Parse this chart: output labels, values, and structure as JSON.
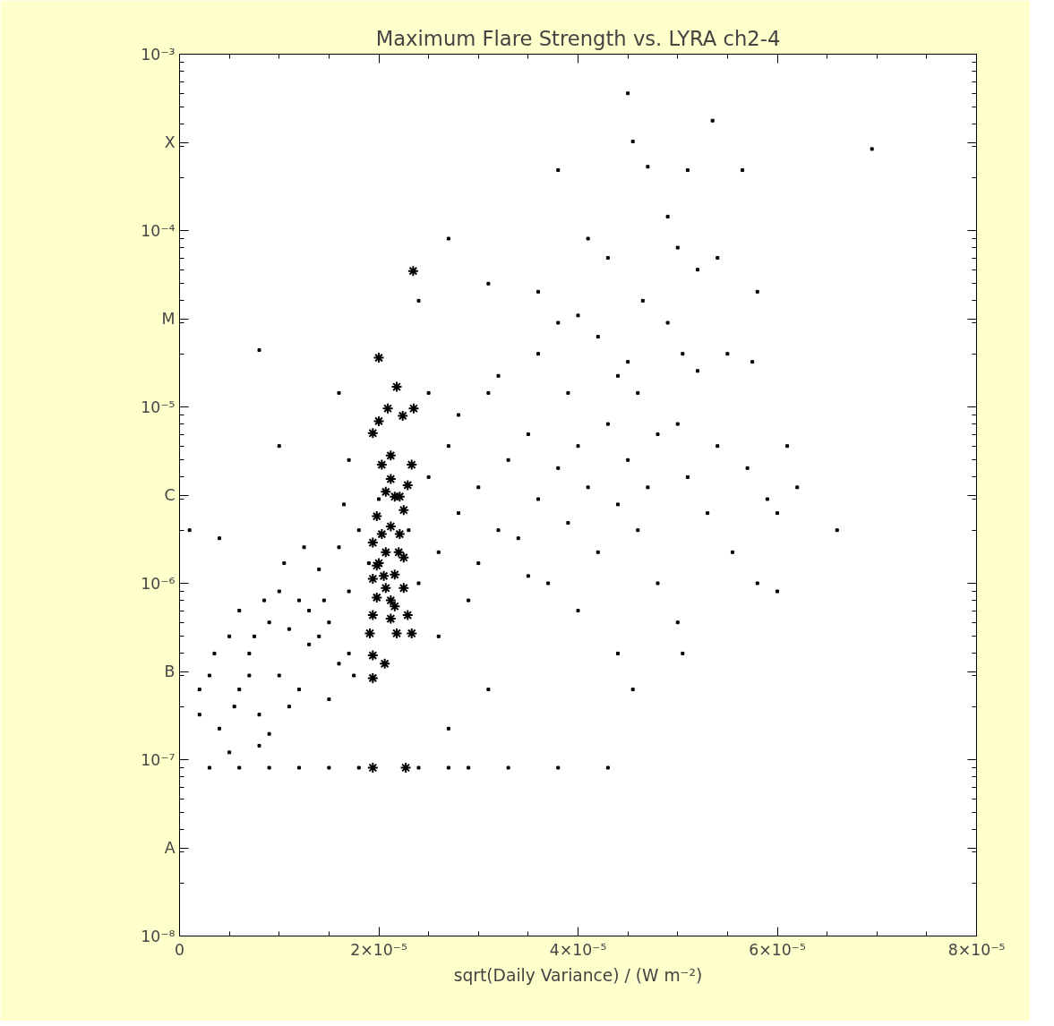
{
  "chart_data": {
    "type": "scatter",
    "title": "Maximum Flare Strength vs. LYRA ch2-4",
    "xlabel": "sqrt(Daily Variance) / (W m⁻²)",
    "log": "y",
    "grid": false,
    "xlim": [
      0,
      8e-05
    ],
    "ylim": [
      1e-08,
      0.001
    ],
    "xticks": [
      0,
      {
        "value": 2e-05,
        "label": "2×10⁻⁵"
      },
      {
        "value": 4e-05,
        "label": "4×10⁻⁵"
      },
      {
        "value": 6e-05,
        "label": "6×10⁻⁵"
      },
      {
        "value": 8e-05,
        "label": "8×10⁻⁵"
      }
    ],
    "yticks": [
      {
        "value": 1e-08,
        "label": "10⁻⁸"
      },
      {
        "value": 3.16e-08,
        "label": "A"
      },
      {
        "value": 1e-07,
        "label": "10⁻⁷"
      },
      {
        "value": 3.16e-07,
        "label": "B"
      },
      {
        "value": 1e-06,
        "label": "10⁻⁶"
      },
      {
        "value": 3.16e-06,
        "label": "C"
      },
      {
        "value": 1e-05,
        "label": "10⁻⁵"
      },
      {
        "value": 3.16e-05,
        "label": "M"
      },
      {
        "value": 0.0001,
        "label": "10⁻⁴"
      },
      {
        "value": 0.000316,
        "label": "X"
      },
      {
        "value": 0.001,
        "label": "10⁻³"
      }
    ],
    "series": [
      {
        "color": "#000000",
        "marker": "square",
        "x": [
          3e-06,
          4e-06,
          5e-06,
          6e-06,
          7e-06,
          8e-06,
          9e-06,
          1e-05,
          1.1e-05,
          1.2e-05,
          1.3e-05,
          1.4e-05,
          1.5e-05,
          1.6e-05,
          1.7e-05,
          1.8e-05,
          6e-06,
          8e-06,
          1e-05,
          1.2e-05,
          1.4e-05,
          1.6e-05,
          5e-06,
          7e-06,
          9e-06,
          1.1e-05,
          1.3e-05,
          1.5e-05,
          1.7e-05,
          1.9e-05,
          2e-06,
          3.5e-06,
          1.25e-05,
          1.45e-05,
          1.65e-05,
          1.05e-05,
          8.5e-06,
          5.5e-06,
          7.5e-06,
          1.75e-05,
          3e-06,
          6e-06,
          9e-06,
          1.2e-05,
          1.5e-05,
          1.8e-05,
          2.4e-05,
          2.7e-05,
          3.3e-05,
          3.8e-05,
          4.3e-05,
          2.9e-05,
          2.3e-05,
          2.4e-05,
          2.5e-05,
          2.6e-05,
          2.7e-05,
          2.8e-05,
          2.9e-05,
          3e-05,
          3.1e-05,
          3.2e-05,
          3.3e-05,
          3.4e-05,
          3.5e-05,
          3.6e-05,
          3.7e-05,
          3.8e-05,
          3.9e-05,
          4e-05,
          4.1e-05,
          4.2e-05,
          4.3e-05,
          4.4e-05,
          4.5e-05,
          4.6e-05,
          4.7e-05,
          4.8e-05,
          2.5e-05,
          2.8e-05,
          3.2e-05,
          3.6e-05,
          3.9e-05,
          4.2e-05,
          4.5e-05,
          2.6e-05,
          3e-05,
          3.5e-05,
          4e-05,
          4.4e-05,
          4.55e-05,
          3.1e-05,
          2.7e-05,
          2.7e-05,
          3.1e-05,
          3.6e-05,
          3.8e-05,
          4.1e-05,
          4.3e-05,
          4.5e-05,
          4.55e-05,
          4.7e-05,
          4.9e-05,
          5e-05,
          5.1e-05,
          5.2e-05,
          5.35e-05,
          5.4e-05,
          5.65e-05,
          5.8e-05,
          3.8e-05,
          2.4e-05,
          4e-05,
          4.4e-05,
          4.65e-05,
          4.9e-05,
          5.05e-05,
          5.2e-05,
          5.5e-05,
          5.75e-05,
          5e-05,
          5.1e-05,
          5.3e-05,
          5.4e-05,
          5.55e-05,
          5.7e-05,
          5.8e-05,
          5.9e-05,
          6e-05,
          6.1e-05,
          6.2e-05,
          6.6e-05,
          6.95e-05,
          5e-05,
          5.05e-05,
          4.8e-05,
          4.6e-05,
          6e-05,
          1e-06,
          2e-06,
          4e-06,
          8e-06,
          1e-05,
          1.6e-05,
          1.7e-05,
          2e-05
        ],
        "values": [
          3e-07,
          1.5e-07,
          5e-07,
          2.5e-07,
          4e-07,
          1.8e-07,
          6e-07,
          3e-07,
          2e-07,
          8e-07,
          4.5e-07,
          1.2e-06,
          6e-07,
          3.5e-07,
          9e-07,
          2e-06,
          7e-07,
          1.2e-07,
          9e-07,
          2.5e-07,
          5e-07,
          1.6e-06,
          1.1e-07,
          3e-07,
          1.4e-07,
          5.5e-07,
          7e-07,
          2.2e-07,
          4e-07,
          1.3e-06,
          1.8e-07,
          4e-07,
          1.6e-06,
          8e-07,
          2.8e-06,
          1.3e-06,
          8e-07,
          2e-07,
          5e-07,
          3e-07,
          9e-08,
          9e-08,
          9e-08,
          9e-08,
          9e-08,
          9e-08,
          9e-08,
          9e-08,
          9e-08,
          9e-08,
          9e-08,
          9e-08,
          2e-06,
          1e-06,
          4e-06,
          1.5e-06,
          6e-06,
          2.5e-06,
          8e-07,
          3.5e-06,
          1.2e-05,
          2e-06,
          5e-06,
          1.8e-06,
          7e-06,
          3e-06,
          1e-06,
          4.5e-06,
          2.2e-06,
          6e-06,
          3.5e-06,
          1.5e-06,
          8e-06,
          2.8e-06,
          5e-06,
          1.2e-05,
          3.5e-06,
          7e-06,
          1.2e-05,
          9e-06,
          1.5e-05,
          2e-05,
          1.2e-05,
          2.5e-05,
          1.8e-05,
          5e-07,
          1.3e-06,
          1.1e-06,
          7e-07,
          4e-07,
          2.5e-07,
          2.5e-07,
          1.5e-07,
          9e-05,
          5e-05,
          4.5e-05,
          3e-05,
          9e-05,
          7e-05,
          0.0006,
          0.00032,
          0.00023,
          0.00012,
          8e-05,
          0.00022,
          6e-05,
          0.00042,
          7e-05,
          0.00022,
          4.5e-05,
          0.00022,
          4e-05,
          3.3e-05,
          1.5e-05,
          4e-05,
          3e-05,
          2e-05,
          1.6e-05,
          2e-05,
          1.8e-05,
          8e-06,
          4e-06,
          2.5e-06,
          6e-06,
          1.5e-06,
          4.5e-06,
          1e-06,
          3e-06,
          2.5e-06,
          6e-06,
          3.5e-06,
          2e-06,
          0.00029,
          6e-07,
          4e-07,
          1e-06,
          2e-06,
          9e-07,
          2e-06,
          2.5e-07,
          1.8e-06,
          2.1e-05,
          6e-06,
          1.2e-05,
          5e-06,
          3e-06
        ]
      },
      {
        "color": "#000000",
        "marker": "cross",
        "x": [
          2.345e-05,
          2e-05,
          2.18e-05,
          2.35e-05,
          2.24e-05,
          2.09e-05,
          2e-05,
          1.94e-05,
          2.12e-05,
          2.33e-05,
          2.12e-05,
          2.07e-05,
          2.21e-05,
          2.25e-05,
          1.98e-05,
          2.12e-05,
          2.21e-05,
          1.94e-05,
          2.07e-05,
          2.25e-05,
          1.98e-05,
          2.16e-05,
          1.94e-05,
          2.07e-05,
          2.25e-05,
          1.98e-05,
          2.16e-05,
          1.94e-05,
          2.12e-05,
          2.29e-05,
          1.91e-05,
          2.18e-05,
          2.33e-05,
          1.94e-05,
          2.06e-05,
          1.94e-05,
          1.94e-05,
          2.27e-05,
          2.03e-05,
          2.16e-05,
          2.03e-05,
          2.2e-05,
          2.05e-05,
          2.12e-05,
          2.29e-05,
          2e-05
        ],
        "values": [
          5.9e-05,
          1.9e-05,
          1.3e-05,
          9.8e-06,
          8.9e-06,
          9.8e-06,
          8.3e-06,
          7.1e-06,
          5.3e-06,
          4.7e-06,
          3.9e-06,
          3.3e-06,
          3.1e-06,
          2.6e-06,
          2.4e-06,
          2.1e-06,
          1.9e-06,
          1.7e-06,
          1.5e-06,
          1.4e-06,
          1.26e-06,
          1.12e-06,
          1.06e-06,
          9.4e-07,
          9.4e-07,
          8.3e-07,
          7.4e-07,
          6.6e-07,
          6.3e-07,
          6.6e-07,
          5.2e-07,
          5.2e-07,
          5.2e-07,
          3.9e-07,
          3.5e-07,
          2.9e-07,
          9e-08,
          9e-08,
          4.7e-06,
          3.1e-06,
          1.9e-06,
          1.5e-06,
          1.1e-06,
          8e-07,
          3.6e-06,
          1.3e-06
        ]
      }
    ]
  }
}
